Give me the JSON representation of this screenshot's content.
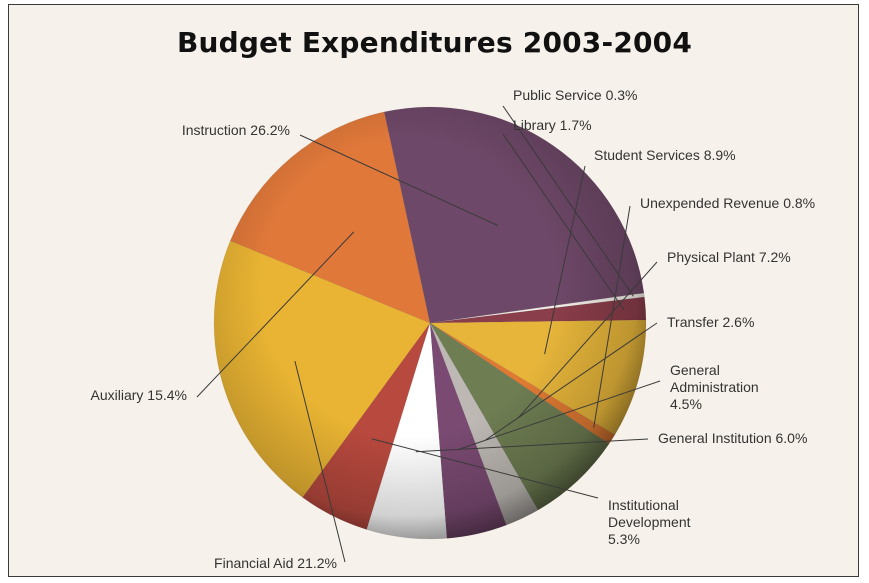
{
  "chart_data": {
    "type": "pie",
    "title": "Budget Expenditures 2003-2004",
    "slices": [
      {
        "label": "Public Service 0.3%",
        "value": 0.3,
        "color": "#f2ede6"
      },
      {
        "label": "Library 1.7%",
        "value": 1.7,
        "color": "#8a3d4a"
      },
      {
        "label": "Student Services 8.9%",
        "value": 8.9,
        "color": "#e6b53a"
      },
      {
        "label": "Unexpended Revenue 0.8%",
        "value": 0.8,
        "color": "#e07a33"
      },
      {
        "label": "Physical Plant 7.2%",
        "value": 7.2,
        "color": "#6e7d52"
      },
      {
        "label": "Transfer 2.6%",
        "value": 2.6,
        "color": "#bdb8b3"
      },
      {
        "label": "General Administration 4.5%",
        "value": 4.5,
        "color": "#7a4a72",
        "label_lines": [
          "General",
          "Administration",
          "4.5%"
        ]
      },
      {
        "label": "General Institution 6.0%",
        "value": 6.0,
        "color": "#ffffff"
      },
      {
        "label": "Institutional Development 5.3%",
        "value": 5.3,
        "color": "#b8493e",
        "label_lines": [
          "Institutional",
          "Development",
          "5.3%"
        ]
      },
      {
        "label": "Financial Aid 21.2%",
        "value": 21.2,
        "color": "#e9b433"
      },
      {
        "label": "Auxiliary 15.4%",
        "value": 15.4,
        "color": "#e0783a"
      },
      {
        "label": "Instruction 26.2%",
        "value": 26.2,
        "color": "#6e4868"
      }
    ]
  }
}
